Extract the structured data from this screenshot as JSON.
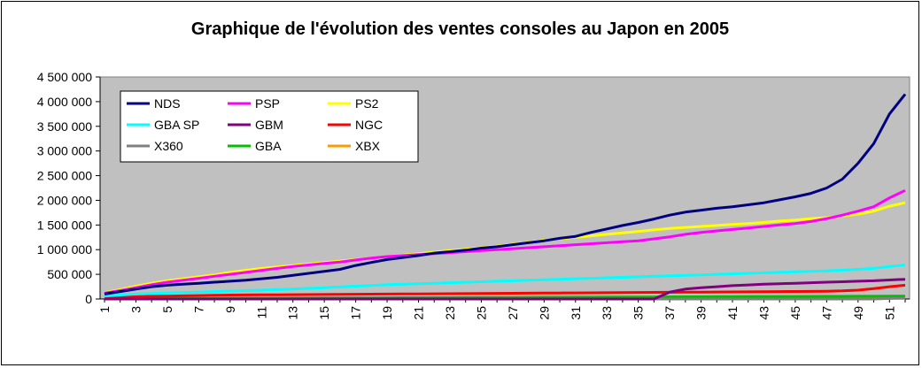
{
  "chart_data": {
    "type": "line",
    "title": "Graphique de l'évolution des ventes consoles au Japon en 2005",
    "xlabel": "",
    "ylabel": "",
    "x": [
      1,
      2,
      3,
      4,
      5,
      6,
      7,
      8,
      9,
      10,
      11,
      12,
      13,
      14,
      15,
      16,
      17,
      18,
      19,
      20,
      21,
      22,
      23,
      24,
      25,
      26,
      27,
      28,
      29,
      30,
      31,
      32,
      33,
      34,
      35,
      36,
      37,
      38,
      39,
      40,
      41,
      42,
      43,
      44,
      45,
      46,
      47,
      48,
      49,
      50,
      51,
      52
    ],
    "x_tick_labels": [
      "1",
      "3",
      "5",
      "7",
      "9",
      "11",
      "13",
      "15",
      "17",
      "19",
      "21",
      "23",
      "25",
      "27",
      "29",
      "31",
      "33",
      "35",
      "37",
      "39",
      "41",
      "43",
      "45",
      "47",
      "49",
      "51"
    ],
    "ylim": [
      0,
      4500000
    ],
    "y_tick_labels": [
      "0",
      "500 000",
      "1 000 000",
      "1 500 000",
      "2 000 000",
      "2 500 000",
      "3 000 000",
      "3 500 000",
      "4 000 000",
      "4 500 000"
    ],
    "plot_background": "#c0c0c0",
    "grid": false,
    "legend_placement": "top-left",
    "series": [
      {
        "name": "NDS",
        "color": "#000080",
        "values": [
          100000,
          150000,
          200000,
          250000,
          280000,
          300000,
          320000,
          340000,
          360000,
          380000,
          410000,
          440000,
          480000,
          520000,
          560000,
          600000,
          680000,
          740000,
          800000,
          840000,
          880000,
          930000,
          960000,
          990000,
          1030000,
          1060000,
          1100000,
          1140000,
          1180000,
          1230000,
          1270000,
          1350000,
          1420000,
          1490000,
          1550000,
          1620000,
          1700000,
          1760000,
          1800000,
          1840000,
          1870000,
          1910000,
          1950000,
          2010000,
          2070000,
          2140000,
          2250000,
          2430000,
          2750000,
          3150000,
          3750000,
          4150000
        ]
      },
      {
        "name": "PSP",
        "color": "#ff00ff",
        "values": [
          120000,
          170000,
          230000,
          290000,
          340000,
          380000,
          420000,
          460000,
          500000,
          540000,
          580000,
          620000,
          660000,
          690000,
          720000,
          750000,
          790000,
          830000,
          860000,
          880000,
          900000,
          920000,
          940000,
          960000,
          980000,
          1000000,
          1020000,
          1040000,
          1060000,
          1080000,
          1100000,
          1120000,
          1140000,
          1160000,
          1180000,
          1220000,
          1260000,
          1310000,
          1350000,
          1380000,
          1410000,
          1440000,
          1470000,
          1500000,
          1530000,
          1570000,
          1630000,
          1700000,
          1780000,
          1870000,
          2050000,
          2200000
        ]
      },
      {
        "name": "PS2",
        "color": "#ffff00",
        "values": [
          130000,
          190000,
          260000,
          320000,
          370000,
          410000,
          450000,
          490000,
          540000,
          580000,
          620000,
          650000,
          680000,
          710000,
          740000,
          770000,
          800000,
          830000,
          860000,
          890000,
          920000,
          950000,
          980000,
          1010000,
          1040000,
          1070000,
          1110000,
          1150000,
          1190000,
          1220000,
          1250000,
          1280000,
          1310000,
          1340000,
          1370000,
          1400000,
          1430000,
          1450000,
          1470000,
          1490000,
          1510000,
          1530000,
          1550000,
          1580000,
          1600000,
          1630000,
          1650000,
          1680000,
          1720000,
          1780000,
          1880000,
          1950000
        ]
      },
      {
        "name": "GBA SP",
        "color": "#00ffff",
        "values": [
          60000,
          80000,
          100000,
          110000,
          120000,
          130000,
          140000,
          150000,
          160000,
          170000,
          180000,
          190000,
          200000,
          215000,
          230000,
          245000,
          260000,
          275000,
          290000,
          300000,
          310000,
          320000,
          330000,
          340000,
          350000,
          360000,
          370000,
          380000,
          390000,
          400000,
          410000,
          420000,
          430000,
          440000,
          450000,
          460000,
          470000,
          480000,
          490000,
          500000,
          510000,
          520000,
          530000,
          540000,
          550000,
          560000,
          570000,
          585000,
          600000,
          620000,
          660000,
          690000
        ]
      },
      {
        "name": "GBM",
        "color": "#800080",
        "values": [
          0,
          0,
          0,
          0,
          0,
          0,
          0,
          0,
          0,
          0,
          0,
          0,
          0,
          0,
          0,
          0,
          0,
          0,
          0,
          0,
          0,
          0,
          0,
          0,
          0,
          0,
          0,
          0,
          0,
          0,
          0,
          0,
          0,
          0,
          0,
          0,
          140000,
          200000,
          230000,
          250000,
          270000,
          285000,
          300000,
          310000,
          320000,
          330000,
          340000,
          350000,
          360000,
          370000,
          385000,
          400000
        ]
      },
      {
        "name": "NGC",
        "color": "#ff0000",
        "values": [
          30000,
          40000,
          50000,
          55000,
          60000,
          65000,
          70000,
          75000,
          80000,
          82000,
          84000,
          86000,
          88000,
          90000,
          92000,
          94000,
          96000,
          98000,
          100000,
          102000,
          104000,
          106000,
          108000,
          110000,
          112000,
          114000,
          116000,
          118000,
          120000,
          122000,
          124000,
          126000,
          128000,
          130000,
          132000,
          134000,
          136000,
          138000,
          140000,
          142000,
          144000,
          146000,
          148000,
          150000,
          152000,
          155000,
          158000,
          165000,
          180000,
          210000,
          250000,
          280000
        ]
      },
      {
        "name": "X360",
        "color": "#808080",
        "values": [
          0,
          0,
          0,
          0,
          0,
          0,
          0,
          0,
          0,
          0,
          0,
          0,
          0,
          0,
          0,
          0,
          0,
          0,
          0,
          0,
          0,
          0,
          0,
          0,
          0,
          0,
          0,
          0,
          0,
          0,
          0,
          0,
          0,
          0,
          0,
          0,
          0,
          0,
          0,
          0,
          0,
          0,
          0,
          0,
          0,
          0,
          0,
          0,
          0,
          0,
          10000,
          15000
        ]
      },
      {
        "name": "GBA",
        "color": "#00c000",
        "values": [
          5000,
          7000,
          9000,
          10000,
          11000,
          12000,
          13000,
          14000,
          15000,
          16000,
          17000,
          18000,
          19000,
          20000,
          21000,
          22000,
          23000,
          24000,
          25000,
          26000,
          27000,
          28000,
          29000,
          30000,
          31000,
          32000,
          33000,
          34000,
          35000,
          36000,
          37000,
          38000,
          39000,
          40000,
          41000,
          42000,
          43000,
          44000,
          45000,
          46000,
          47000,
          48000,
          49000,
          50000,
          51000,
          52000,
          53000,
          54000,
          55000,
          56000,
          57000,
          58000
        ]
      },
      {
        "name": "XBX",
        "color": "#ff9900",
        "values": [
          3000,
          4000,
          5000,
          6000,
          7000,
          8000,
          9000,
          10000,
          11000,
          12000,
          13000,
          14000,
          15000,
          16000,
          17000,
          18000,
          19000,
          20000,
          21000,
          22000,
          23000,
          24000,
          25000,
          26000,
          27000,
          28000,
          29000,
          30000,
          31000,
          32000,
          33000,
          34000,
          35000,
          36000,
          37000,
          38000,
          39000,
          40000,
          41000,
          42000,
          43000,
          44000,
          45000,
          46000,
          47000,
          48000,
          49000,
          50000,
          51000,
          52000,
          53000,
          54000
        ]
      }
    ]
  }
}
